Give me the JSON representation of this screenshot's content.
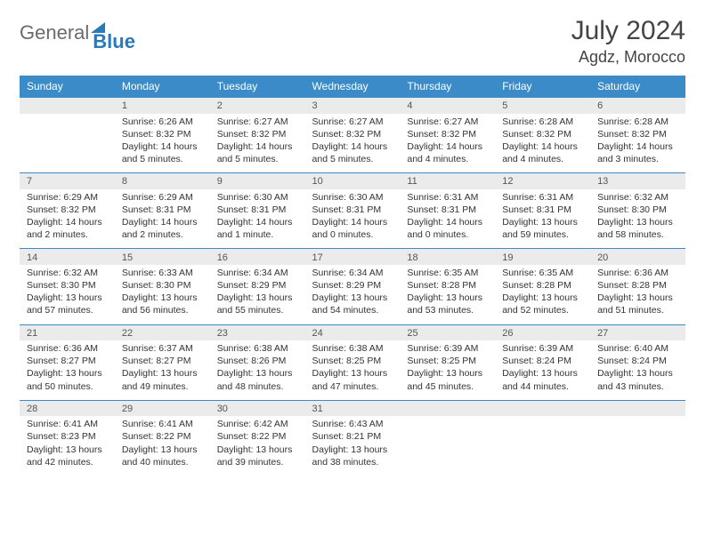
{
  "brand": {
    "part1": "General",
    "part2": "Blue"
  },
  "title": "July 2024",
  "location": "Agdz, Morocco",
  "colors": {
    "header_bg": "#3b8bc9",
    "header_text": "#ffffff",
    "numrow_bg": "#ebebeb",
    "numrow_border": "#3b8bc9",
    "body_text": "#333333",
    "page_bg": "#ffffff"
  },
  "dow": [
    "Sunday",
    "Monday",
    "Tuesday",
    "Wednesday",
    "Thursday",
    "Friday",
    "Saturday"
  ],
  "weeks": [
    {
      "nums": [
        "",
        "1",
        "2",
        "3",
        "4",
        "5",
        "6"
      ],
      "cells": [
        "",
        "Sunrise: 6:26 AM\nSunset: 8:32 PM\nDaylight: 14 hours and 5 minutes.",
        "Sunrise: 6:27 AM\nSunset: 8:32 PM\nDaylight: 14 hours and 5 minutes.",
        "Sunrise: 6:27 AM\nSunset: 8:32 PM\nDaylight: 14 hours and 5 minutes.",
        "Sunrise: 6:27 AM\nSunset: 8:32 PM\nDaylight: 14 hours and 4 minutes.",
        "Sunrise: 6:28 AM\nSunset: 8:32 PM\nDaylight: 14 hours and 4 minutes.",
        "Sunrise: 6:28 AM\nSunset: 8:32 PM\nDaylight: 14 hours and 3 minutes."
      ]
    },
    {
      "nums": [
        "7",
        "8",
        "9",
        "10",
        "11",
        "12",
        "13"
      ],
      "cells": [
        "Sunrise: 6:29 AM\nSunset: 8:32 PM\nDaylight: 14 hours and 2 minutes.",
        "Sunrise: 6:29 AM\nSunset: 8:31 PM\nDaylight: 14 hours and 2 minutes.",
        "Sunrise: 6:30 AM\nSunset: 8:31 PM\nDaylight: 14 hours and 1 minute.",
        "Sunrise: 6:30 AM\nSunset: 8:31 PM\nDaylight: 14 hours and 0 minutes.",
        "Sunrise: 6:31 AM\nSunset: 8:31 PM\nDaylight: 14 hours and 0 minutes.",
        "Sunrise: 6:31 AM\nSunset: 8:31 PM\nDaylight: 13 hours and 59 minutes.",
        "Sunrise: 6:32 AM\nSunset: 8:30 PM\nDaylight: 13 hours and 58 minutes."
      ]
    },
    {
      "nums": [
        "14",
        "15",
        "16",
        "17",
        "18",
        "19",
        "20"
      ],
      "cells": [
        "Sunrise: 6:32 AM\nSunset: 8:30 PM\nDaylight: 13 hours and 57 minutes.",
        "Sunrise: 6:33 AM\nSunset: 8:30 PM\nDaylight: 13 hours and 56 minutes.",
        "Sunrise: 6:34 AM\nSunset: 8:29 PM\nDaylight: 13 hours and 55 minutes.",
        "Sunrise: 6:34 AM\nSunset: 8:29 PM\nDaylight: 13 hours and 54 minutes.",
        "Sunrise: 6:35 AM\nSunset: 8:28 PM\nDaylight: 13 hours and 53 minutes.",
        "Sunrise: 6:35 AM\nSunset: 8:28 PM\nDaylight: 13 hours and 52 minutes.",
        "Sunrise: 6:36 AM\nSunset: 8:28 PM\nDaylight: 13 hours and 51 minutes."
      ]
    },
    {
      "nums": [
        "21",
        "22",
        "23",
        "24",
        "25",
        "26",
        "27"
      ],
      "cells": [
        "Sunrise: 6:36 AM\nSunset: 8:27 PM\nDaylight: 13 hours and 50 minutes.",
        "Sunrise: 6:37 AM\nSunset: 8:27 PM\nDaylight: 13 hours and 49 minutes.",
        "Sunrise: 6:38 AM\nSunset: 8:26 PM\nDaylight: 13 hours and 48 minutes.",
        "Sunrise: 6:38 AM\nSunset: 8:25 PM\nDaylight: 13 hours and 47 minutes.",
        "Sunrise: 6:39 AM\nSunset: 8:25 PM\nDaylight: 13 hours and 45 minutes.",
        "Sunrise: 6:39 AM\nSunset: 8:24 PM\nDaylight: 13 hours and 44 minutes.",
        "Sunrise: 6:40 AM\nSunset: 8:24 PM\nDaylight: 13 hours and 43 minutes."
      ]
    },
    {
      "nums": [
        "28",
        "29",
        "30",
        "31",
        "",
        "",
        ""
      ],
      "cells": [
        "Sunrise: 6:41 AM\nSunset: 8:23 PM\nDaylight: 13 hours and 42 minutes.",
        "Sunrise: 6:41 AM\nSunset: 8:22 PM\nDaylight: 13 hours and 40 minutes.",
        "Sunrise: 6:42 AM\nSunset: 8:22 PM\nDaylight: 13 hours and 39 minutes.",
        "Sunrise: 6:43 AM\nSunset: 8:21 PM\nDaylight: 13 hours and 38 minutes.",
        "",
        "",
        ""
      ]
    }
  ]
}
